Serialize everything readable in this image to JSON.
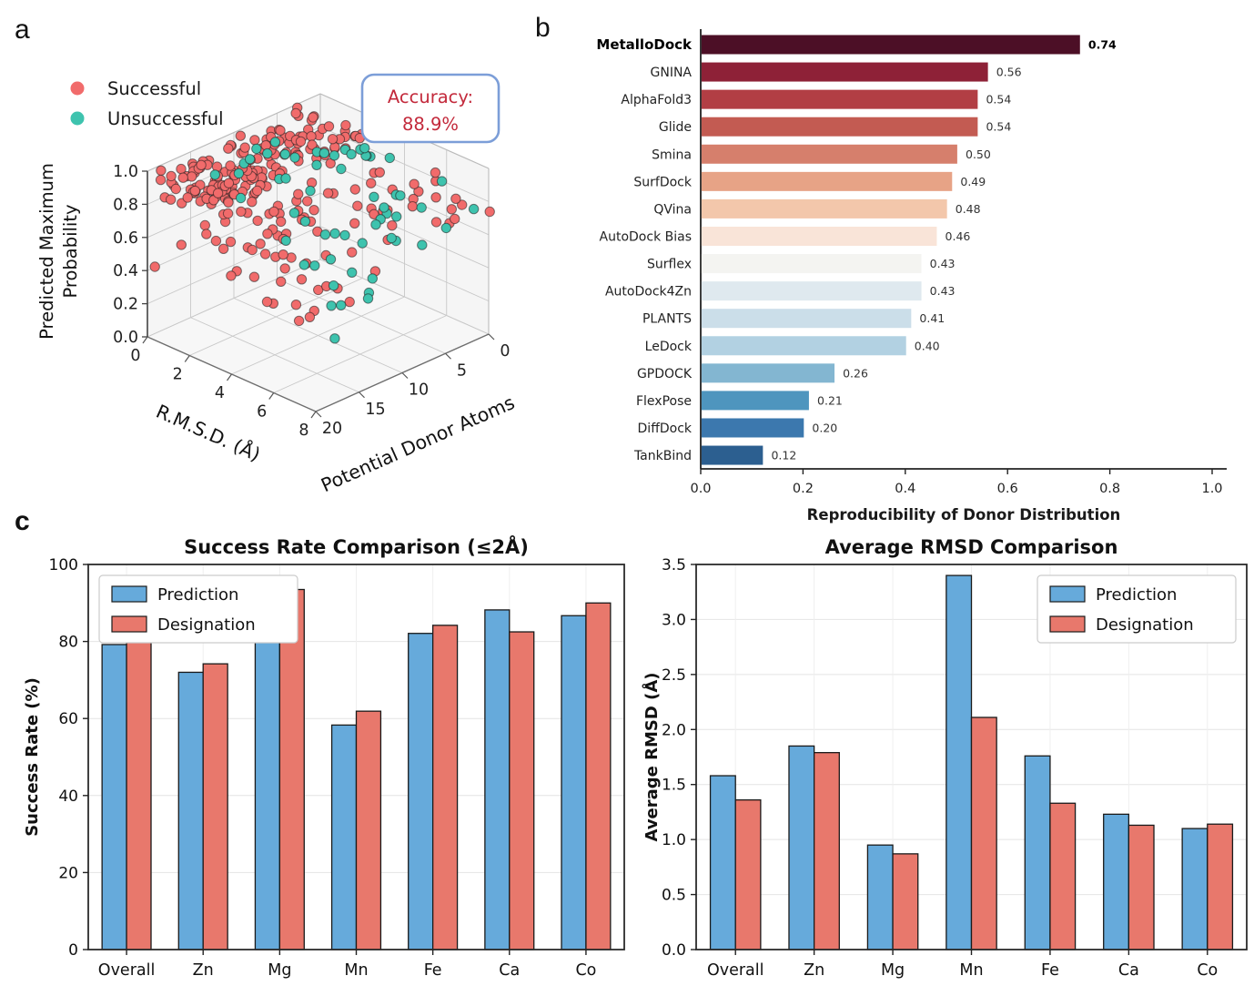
{
  "figure": {
    "background": "#ffffff",
    "panel_letters": {
      "a": "a",
      "b": "b",
      "c": "c"
    }
  },
  "chart_data": [
    {
      "id": "a",
      "type": "scatter3d",
      "legend": [
        {
          "label": "Successful",
          "color": "#F16B6B"
        },
        {
          "label": "Unsuccessful",
          "color": "#3EC3AE"
        }
      ],
      "annotation": {
        "line1": "Accuracy:",
        "line2": "88.9%",
        "text_color": "#C3293B",
        "border_color": "#7C9ED8"
      },
      "axes": {
        "x": {
          "label": "R.M.S.D. (Å)",
          "ticks": [
            "0",
            "2",
            "4",
            "6",
            "8"
          ],
          "tick_values": [
            0,
            2,
            4,
            6,
            8
          ],
          "range": [
            0,
            8
          ]
        },
        "y": {
          "label": "Potential Donor Atoms",
          "ticks": [
            "20",
            "15",
            "10",
            "5",
            "0"
          ],
          "tick_values": [
            20,
            15,
            10,
            5,
            0
          ],
          "range": [
            0,
            20
          ]
        },
        "z": {
          "label_line1": "Predicted Maximum",
          "label_line2": "Probability",
          "ticks": [
            "0.0",
            "0.2",
            "0.4",
            "0.6",
            "0.8",
            "1.0"
          ],
          "tick_values": [
            0,
            0.2,
            0.4,
            0.6,
            0.8,
            1.0
          ],
          "range": [
            0,
            1
          ]
        }
      },
      "seed": 7,
      "series": [
        {
          "name": "Successful",
          "color": "#F16B6B",
          "clusters": [
            {
              "n": 118,
              "x": [
                0.15,
                3.3
              ],
              "y": [
                2,
                20
              ],
              "z": [
                0.955,
                1.0
              ]
            },
            {
              "n": 26,
              "x": [
                0.2,
                2.6
              ],
              "y": [
                13.5,
                20
              ],
              "z": [
                0.86,
                0.99
              ]
            },
            {
              "n": 58,
              "x": [
                0.3,
                5.2
              ],
              "y": [
                3,
                18.5
              ],
              "z": [
                0.55,
                0.95
              ]
            },
            {
              "n": 26,
              "x": [
                0.4,
                5.6
              ],
              "y": [
                4,
                16
              ],
              "z": [
                0.3,
                0.6
              ]
            },
            {
              "n": 8,
              "x": [
                0.8,
                5.0
              ],
              "y": [
                6,
                14
              ],
              "z": [
                0.12,
                0.34
              ]
            },
            {
              "n": 14,
              "x": [
                4.2,
                8.0
              ],
              "y": [
                0.2,
                5
              ],
              "z": [
                0.58,
                0.92
              ]
            }
          ],
          "outliers": [
            [
              8.3,
              0.6,
              0.77
            ],
            [
              0.15,
              19.5,
              0.42
            ],
            [
              2.4,
              12,
              0.16
            ],
            [
              1.2,
              19,
              0.6
            ]
          ]
        },
        {
          "name": "Unsuccessful",
          "color": "#3EC3AE",
          "clusters": [
            {
              "n": 15,
              "x": [
                1.4,
                4.6
              ],
              "y": [
                2.5,
                10
              ],
              "z": [
                0.9,
                1.0
              ]
            },
            {
              "n": 9,
              "x": [
                0.6,
                3.2
              ],
              "y": [
                8,
                16
              ],
              "z": [
                0.86,
                1.0
              ]
            },
            {
              "n": 13,
              "x": [
                3.6,
                7.6
              ],
              "y": [
                0.3,
                6
              ],
              "z": [
                0.52,
                0.86
              ]
            },
            {
              "n": 13,
              "x": [
                1.6,
                6.0
              ],
              "y": [
                4,
                14
              ],
              "z": [
                0.36,
                0.75
              ]
            },
            {
              "n": 6,
              "x": [
                4.4,
                7.2
              ],
              "y": [
                8,
                14
              ],
              "z": [
                0.3,
                0.52
              ]
            }
          ],
          "outliers": [
            [
              5.0,
              10.5,
              0.05
            ],
            [
              3.3,
              6.5,
              0.18
            ],
            [
              6.8,
              2.0,
              0.62
            ]
          ]
        }
      ]
    },
    {
      "id": "b",
      "type": "bar",
      "orientation": "horizontal",
      "categories": [
        "MetalloDock",
        "GNINA",
        "AlphaFold3",
        "Glide",
        "Smina",
        "SurfDock",
        "QVina",
        "AutoDock Bias",
        "Surflex",
        "AutoDock4Zn",
        "PLANTS",
        "LeDock",
        "GPDOCK",
        "FlexPose",
        "DiffDock",
        "TankBind"
      ],
      "values": [
        0.74,
        0.56,
        0.54,
        0.54,
        0.5,
        0.49,
        0.48,
        0.46,
        0.43,
        0.43,
        0.41,
        0.4,
        0.26,
        0.21,
        0.2,
        0.12
      ],
      "value_labels": [
        "0.74",
        "0.56",
        "0.54",
        "0.54",
        "0.50",
        "0.49",
        "0.48",
        "0.46",
        "0.43",
        "0.43",
        "0.41",
        "0.40",
        "0.26",
        "0.21",
        "0.20",
        "0.12"
      ],
      "bar_colors": [
        "#4C0F26",
        "#8E2137",
        "#B23E44",
        "#C35B52",
        "#D67F6C",
        "#E7A386",
        "#F3C7AB",
        "#F9E4D8",
        "#F4F4F1",
        "#DFE9EF",
        "#CBDEE9",
        "#B2D1E2",
        "#83B6D1",
        "#4E95BE",
        "#3C78AE",
        "#2C5F90"
      ],
      "bold_category": "MetalloDock",
      "xlabel": "Reproducibility of Donor Distribution",
      "xticks": [
        "0.0",
        "0.2",
        "0.4",
        "0.6",
        "0.8",
        "1.0"
      ],
      "xtick_values": [
        0,
        0.2,
        0.4,
        0.6,
        0.8,
        1.0
      ],
      "xlim": [
        0,
        1.05
      ]
    },
    {
      "id": "c-left",
      "type": "bar",
      "title": "Success Rate Comparison (≤2Å)",
      "categories": [
        "Overall",
        "Zn",
        "Mg",
        "Mn",
        "Fe",
        "Ca",
        "Co"
      ],
      "series": [
        {
          "name": "Prediction",
          "color": "#66AADB",
          "values": [
            79.2,
            72.0,
            88.3,
            58.3,
            82.1,
            88.2,
            86.7
          ]
        },
        {
          "name": "Designation",
          "color": "#E8786C",
          "values": [
            82.6,
            74.2,
            93.5,
            61.9,
            84.2,
            82.5,
            90.0
          ]
        }
      ],
      "ylabel": "Success Rate (%)",
      "ylim": [
        0,
        100
      ],
      "yticks": [
        "0",
        "20",
        "40",
        "60",
        "80",
        "100"
      ],
      "ytick_values": [
        0,
        20,
        40,
        60,
        80,
        100
      ],
      "legend_position": "upper-left",
      "grid": true
    },
    {
      "id": "c-right",
      "type": "bar",
      "title": "Average RMSD Comparison",
      "categories": [
        "Overall",
        "Zn",
        "Mg",
        "Mn",
        "Fe",
        "Ca",
        "Co"
      ],
      "series": [
        {
          "name": "Prediction",
          "color": "#66AADB",
          "values": [
            1.58,
            1.85,
            0.95,
            3.4,
            1.76,
            1.23,
            1.1
          ]
        },
        {
          "name": "Designation",
          "color": "#E8786C",
          "values": [
            1.36,
            1.79,
            0.87,
            2.11,
            1.33,
            1.13,
            1.14
          ]
        }
      ],
      "ylabel": "Average RMSD (Å)",
      "ylim": [
        0,
        3.5
      ],
      "yticks": [
        "0.0",
        "0.5",
        "1.0",
        "1.5",
        "2.0",
        "2.5",
        "3.0",
        "3.5"
      ],
      "ytick_values": [
        0,
        0.5,
        1.0,
        1.5,
        2.0,
        2.5,
        3.0,
        3.5
      ],
      "legend_position": "upper-right",
      "grid": true
    }
  ]
}
